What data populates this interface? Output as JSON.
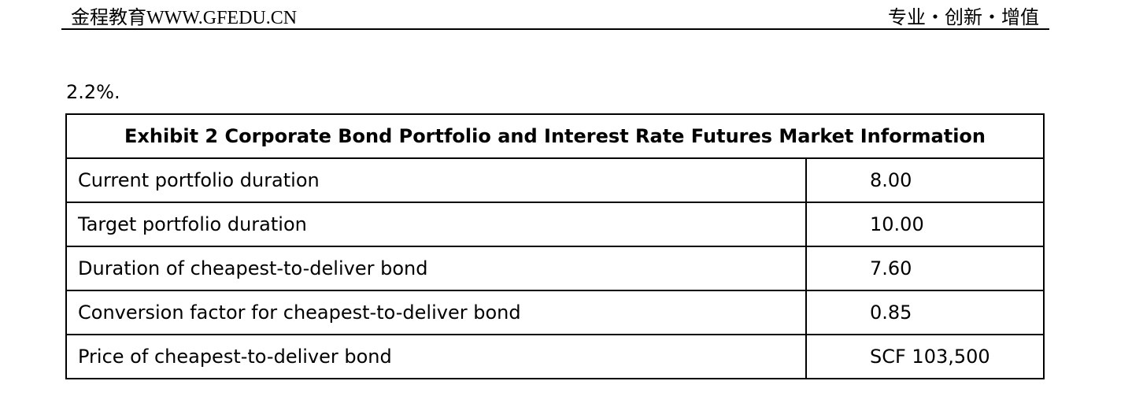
{
  "header": {
    "left": "金程教育WWW.GFEDU.CN",
    "right": "专业・创新・增值"
  },
  "intro": "2.2%.",
  "table": {
    "title": "Exhibit 2 Corporate Bond Portfolio and Interest Rate Futures Market Information",
    "rows": [
      [
        "Current portfolio duration",
        "8.00"
      ],
      [
        "Target portfolio duration",
        "10.00"
      ],
      [
        "Duration of cheapest-to-deliver bond",
        "7.60"
      ],
      [
        "Conversion factor for cheapest-to-deliver bond",
        "0.85"
      ],
      [
        "Price of cheapest-to-deliver bond",
        "SCF 103,500"
      ]
    ]
  }
}
